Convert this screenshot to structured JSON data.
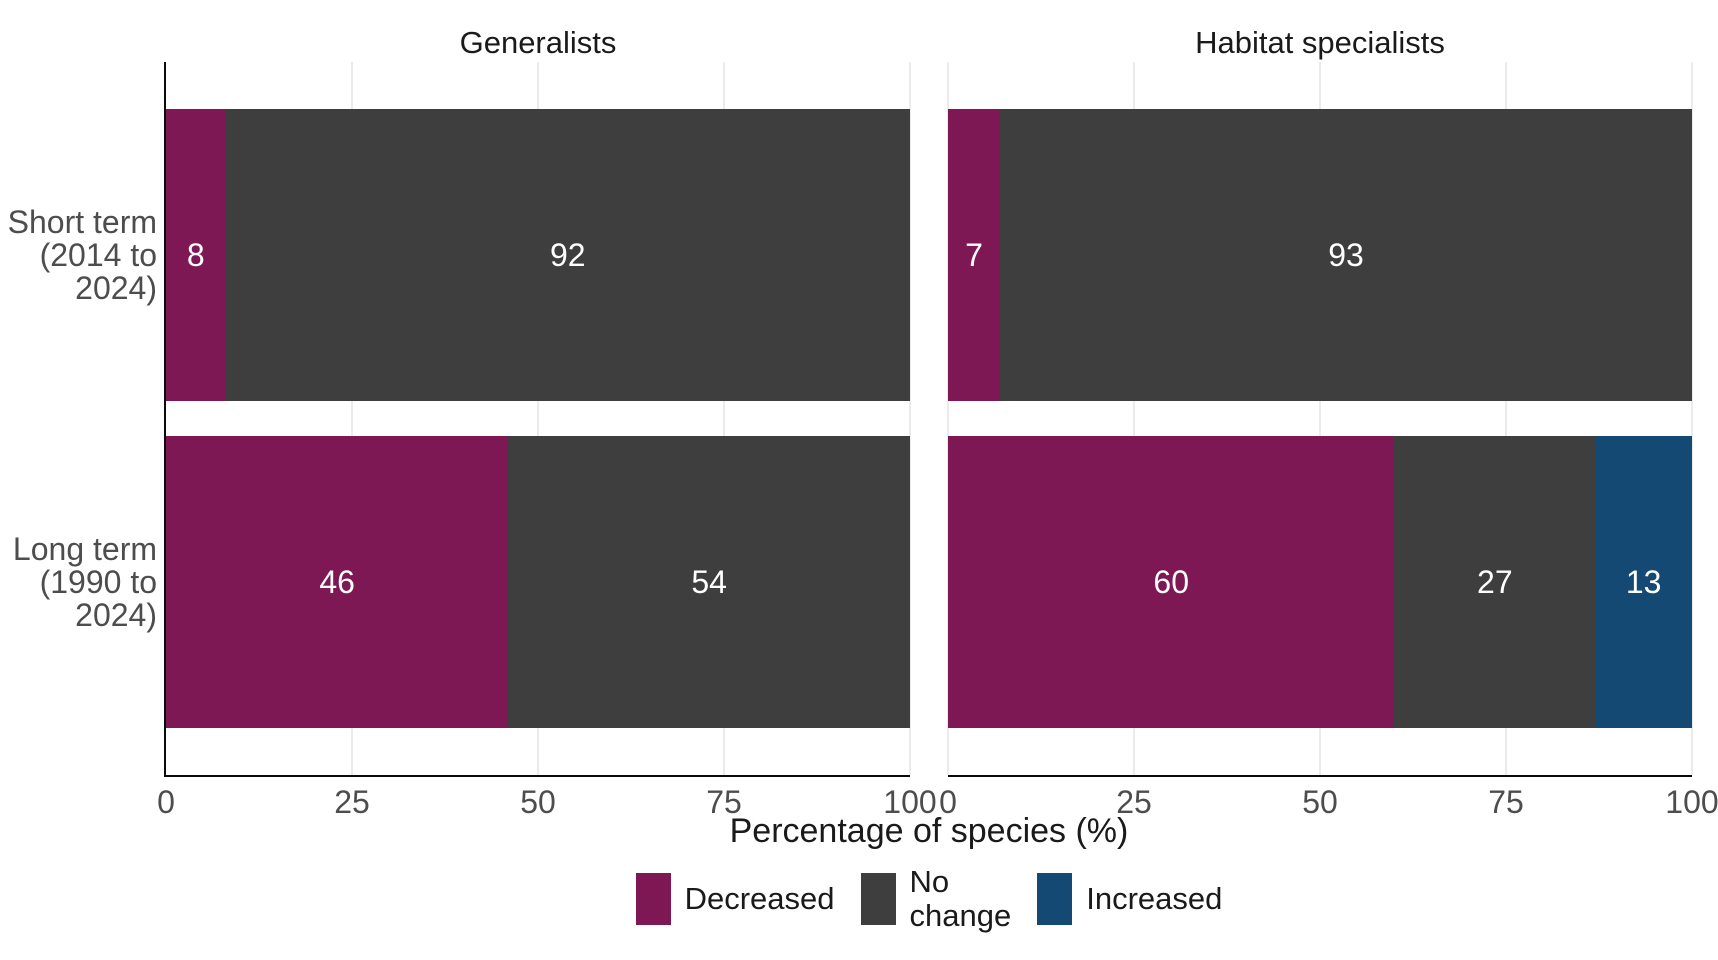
{
  "chart_data": {
    "type": "bar",
    "orientation": "horizontal",
    "stacked": true,
    "xlabel": "Percentage of species (%)",
    "x_ticks": [
      0,
      25,
      50,
      75,
      100
    ],
    "xlim": [
      0,
      100
    ],
    "grid": "vertical-major-only",
    "legend_position": "bottom",
    "background": "#ffffff",
    "categories": [
      "Short term (2014 to 2024)",
      "Long term (1990 to 2024)"
    ],
    "category_label_lines": [
      [
        "Short term",
        "(2014 to",
        "2024)"
      ],
      [
        "Long term",
        "(1990 to",
        "2024)"
      ]
    ],
    "legend": [
      {
        "label": "Decreased",
        "color": "#7E1855"
      },
      {
        "label": "No\nchange",
        "color": "#3E3E3E"
      },
      {
        "label": "Increased",
        "color": "#144974"
      }
    ],
    "value_label_color": "#FFFFFF",
    "gridline_color": "#EBEBEB",
    "axis_line_color": "#0A0A0A",
    "facets": [
      {
        "title": "Generalists",
        "series": [
          {
            "name": "Decreased",
            "values": [
              8,
              46
            ]
          },
          {
            "name": "No change",
            "values": [
              92,
              54
            ]
          },
          {
            "name": "Increased",
            "values": [
              0,
              0
            ]
          }
        ]
      },
      {
        "title": "Habitat specialists",
        "series": [
          {
            "name": "Decreased",
            "values": [
              7,
              60
            ]
          },
          {
            "name": "No change",
            "values": [
              93,
              27
            ]
          },
          {
            "name": "Increased",
            "values": [
              0,
              13
            ]
          }
        ]
      }
    ]
  }
}
